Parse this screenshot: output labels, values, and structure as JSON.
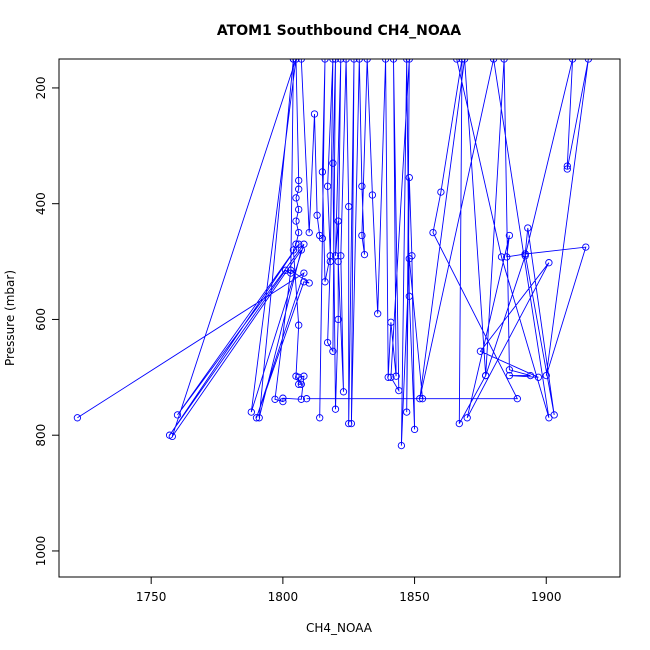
{
  "chart_data": {
    "type": "line",
    "title": "ATOM1 Southbound CH4_NOAA",
    "xlabel": "CH4_NOAA",
    "ylabel": "Pressure (mbar)",
    "xlim": [
      1715,
      1928
    ],
    "ylim": [
      1045,
      150
    ],
    "y_reversed": true,
    "x_ticks": [
      1750,
      1800,
      1850,
      1900
    ],
    "y_ticks": [
      200,
      400,
      600,
      800,
      1000
    ],
    "grid": false,
    "legend": "none",
    "series": [
      {
        "color": "#0000ff",
        "points": [
          [
            1722,
            770
          ],
          [
            1808,
            520
          ],
          [
            1790,
            770
          ],
          [
            1808,
            535
          ],
          [
            1810,
            537
          ],
          [
            1803,
            515
          ],
          [
            1797,
            738
          ],
          [
            1800,
            742
          ],
          [
            1800,
            736
          ],
          [
            1807,
            738
          ],
          [
            1808,
            698
          ],
          [
            1806,
            700
          ],
          [
            1806,
            712
          ],
          [
            1807,
            712
          ],
          [
            1805,
            698
          ],
          [
            1806,
            610
          ],
          [
            1804,
            480
          ],
          [
            1805,
            470
          ],
          [
            1806,
            450
          ],
          [
            1805,
            430
          ],
          [
            1806,
            410
          ],
          [
            1805,
            390
          ],
          [
            1806,
            375
          ],
          [
            1806,
            360
          ],
          [
            1805,
            150
          ],
          [
            1804,
            150
          ],
          [
            1803,
            520
          ],
          [
            1801,
            515
          ],
          [
            1757,
            800
          ],
          [
            1806,
            470
          ],
          [
            1760,
            765
          ],
          [
            1808,
            470
          ],
          [
            1788,
            760
          ],
          [
            1805,
            150
          ],
          [
            1758,
            802
          ],
          [
            1807,
            480
          ],
          [
            1791,
            770
          ],
          [
            1804,
            150
          ],
          [
            1807,
            150
          ],
          [
            1810,
            450
          ],
          [
            1812,
            245
          ],
          [
            1813,
            420
          ],
          [
            1814,
            455
          ],
          [
            1815,
            460
          ],
          [
            1814,
            770
          ],
          [
            1816,
            150
          ],
          [
            1815,
            345
          ],
          [
            1816,
            535
          ],
          [
            1818,
            490
          ],
          [
            1817,
            370
          ],
          [
            1819,
            150
          ],
          [
            1818,
            500
          ],
          [
            1817,
            640
          ],
          [
            1819,
            655
          ],
          [
            1820,
            150
          ],
          [
            1819,
            330
          ],
          [
            1820,
            755
          ],
          [
            1821,
            600
          ],
          [
            1821,
            430
          ],
          [
            1820,
            490
          ],
          [
            1822,
            150
          ],
          [
            1821,
            500
          ],
          [
            1823,
            725
          ],
          [
            1822,
            490
          ],
          [
            1824,
            150
          ],
          [
            1825,
            405
          ],
          [
            1825,
            780
          ],
          [
            1827,
            150
          ],
          [
            1826,
            780
          ],
          [
            1829,
            150
          ],
          [
            1830,
            370
          ],
          [
            1831,
            488
          ],
          [
            1830,
            455
          ],
          [
            1832,
            150
          ],
          [
            1834,
            385
          ],
          [
            1836,
            590
          ],
          [
            1839,
            150
          ],
          [
            1840,
            700
          ],
          [
            1841,
            605
          ],
          [
            1843,
            698
          ],
          [
            1842,
            150
          ],
          [
            1844,
            723
          ],
          [
            1841,
            700
          ],
          [
            1848,
            150
          ],
          [
            1847,
            760
          ],
          [
            1848,
            355
          ],
          [
            1849,
            490
          ],
          [
            1850,
            790
          ],
          [
            1848,
            560
          ],
          [
            1847,
            150
          ],
          [
            1845,
            818
          ],
          [
            1848,
            495
          ],
          [
            1853,
            737
          ],
          [
            1809,
            737
          ],
          [
            1889,
            737
          ],
          [
            1857,
            450
          ],
          [
            1860,
            380
          ],
          [
            1868,
            150
          ],
          [
            1867,
            780
          ],
          [
            1877,
            697
          ],
          [
            1884,
            150
          ],
          [
            1886,
            687
          ],
          [
            1894,
            697
          ],
          [
            1886,
            697
          ],
          [
            1897,
            700
          ],
          [
            1875,
            655
          ],
          [
            1901,
            502
          ],
          [
            1870,
            770
          ],
          [
            1886,
            455
          ],
          [
            1885,
            492
          ],
          [
            1892,
            487
          ],
          [
            1893,
            442
          ],
          [
            1903,
            765
          ],
          [
            1892,
            487
          ],
          [
            1915,
            475
          ],
          [
            1900,
            697
          ],
          [
            1916,
            150
          ],
          [
            1908,
            340
          ],
          [
            1908,
            335
          ],
          [
            1910,
            150
          ],
          [
            1892,
            490
          ],
          [
            1877,
            697
          ],
          [
            1869,
            150
          ],
          [
            1852,
            737
          ],
          [
            1880,
            150
          ],
          [
            1901,
            770
          ],
          [
            1883,
            492
          ],
          [
            1866,
            150
          ]
        ]
      }
    ]
  }
}
